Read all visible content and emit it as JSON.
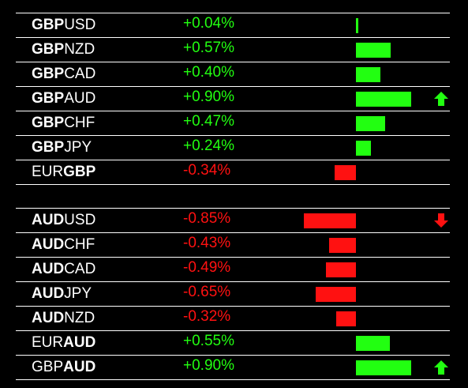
{
  "colors": {
    "up": "#22ff11",
    "down": "#ff1111",
    "text": "#ffffff",
    "background": "#000000"
  },
  "groups": [
    {
      "rows": [
        {
          "bold_first": true,
          "part1": "GBP",
          "part2": "USD",
          "change": "+0.04%",
          "value": 0.04,
          "arrow": ""
        },
        {
          "bold_first": true,
          "part1": "GBP",
          "part2": "NZD",
          "change": "+0.57%",
          "value": 0.57,
          "arrow": ""
        },
        {
          "bold_first": true,
          "part1": "GBP",
          "part2": "CAD",
          "change": "+0.40%",
          "value": 0.4,
          "arrow": ""
        },
        {
          "bold_first": true,
          "part1": "GBP",
          "part2": "AUD",
          "change": "+0.90%",
          "value": 0.9,
          "arrow": "up-arrow-icon"
        },
        {
          "bold_first": true,
          "part1": "GBP",
          "part2": "CHF",
          "change": "+0.47%",
          "value": 0.47,
          "arrow": ""
        },
        {
          "bold_first": true,
          "part1": "GBP",
          "part2": "JPY",
          "change": "+0.24%",
          "value": 0.24,
          "arrow": ""
        },
        {
          "bold_first": false,
          "part1": "EUR",
          "part2": "GBP",
          "change": "-0.34%",
          "value": -0.34,
          "arrow": ""
        }
      ]
    },
    {
      "rows": [
        {
          "bold_first": true,
          "part1": "AUD",
          "part2": "USD",
          "change": "-0.85%",
          "value": -0.85,
          "arrow": "down-arrow-icon"
        },
        {
          "bold_first": true,
          "part1": "AUD",
          "part2": "CHF",
          "change": "-0.43%",
          "value": -0.43,
          "arrow": ""
        },
        {
          "bold_first": true,
          "part1": "AUD",
          "part2": "CAD",
          "change": "-0.49%",
          "value": -0.49,
          "arrow": ""
        },
        {
          "bold_first": true,
          "part1": "AUD",
          "part2": "JPY",
          "change": "-0.65%",
          "value": -0.65,
          "arrow": ""
        },
        {
          "bold_first": true,
          "part1": "AUD",
          "part2": "NZD",
          "change": "-0.32%",
          "value": -0.32,
          "arrow": ""
        },
        {
          "bold_first": false,
          "part1": "EUR",
          "part2": "AUD",
          "change": "+0.55%",
          "value": 0.55,
          "arrow": ""
        },
        {
          "bold_first": false,
          "part1": "GBP",
          "part2": "AUD",
          "change": "+0.90%",
          "value": 0.9,
          "arrow": "up-arrow-icon"
        }
      ]
    }
  ]
}
